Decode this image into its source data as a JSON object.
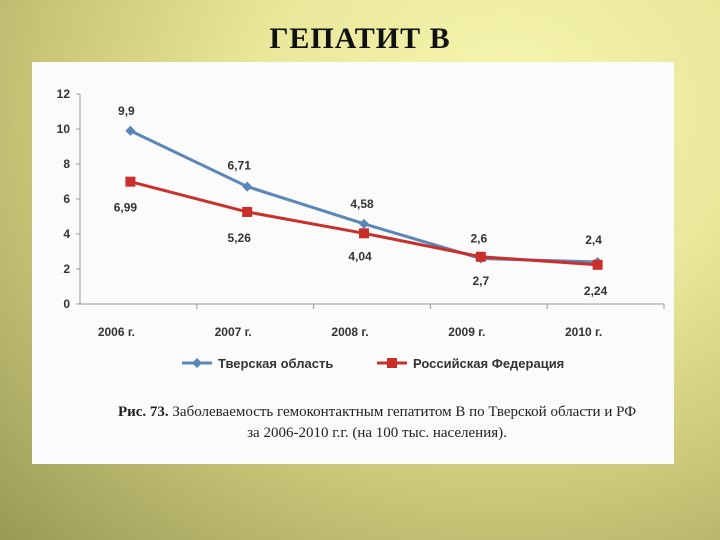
{
  "slide": {
    "title": "ГЕПАТИТ В"
  },
  "caption": {
    "figure": "Рис. 73.",
    "line1": "Заболеваемость гемоконтактным гепатитом В по Тверской области и РФ",
    "line2": "за 2006-2010 г.г. (на 100 тыс. населения)."
  },
  "colors": {
    "tver": "#5b86b8",
    "rf": "#c9302c",
    "axis": "#999999"
  },
  "chart_data": {
    "type": "line",
    "title": "",
    "xlabel": "",
    "ylabel": "",
    "categories": [
      "2006 г.",
      "2007 г.",
      "2008 г.",
      "2009 г.",
      "2010 г."
    ],
    "ylim": [
      0,
      12
    ],
    "yticks": [
      0,
      2,
      4,
      6,
      8,
      10,
      12
    ],
    "grid": false,
    "legend_position": "bottom",
    "series": [
      {
        "name": "Тверская область",
        "values": [
          9.9,
          6.71,
          4.58,
          2.6,
          2.4
        ],
        "labels": [
          "9,9",
          "6,71",
          "4,58",
          "2,6",
          "2,4"
        ],
        "marker": "diamond"
      },
      {
        "name": "Российская Федерация",
        "values": [
          6.99,
          5.26,
          4.04,
          2.7,
          2.24
        ],
        "labels": [
          "6,99",
          "5,26",
          "4,04",
          "2,7",
          "2,24"
        ],
        "marker": "square"
      }
    ]
  }
}
